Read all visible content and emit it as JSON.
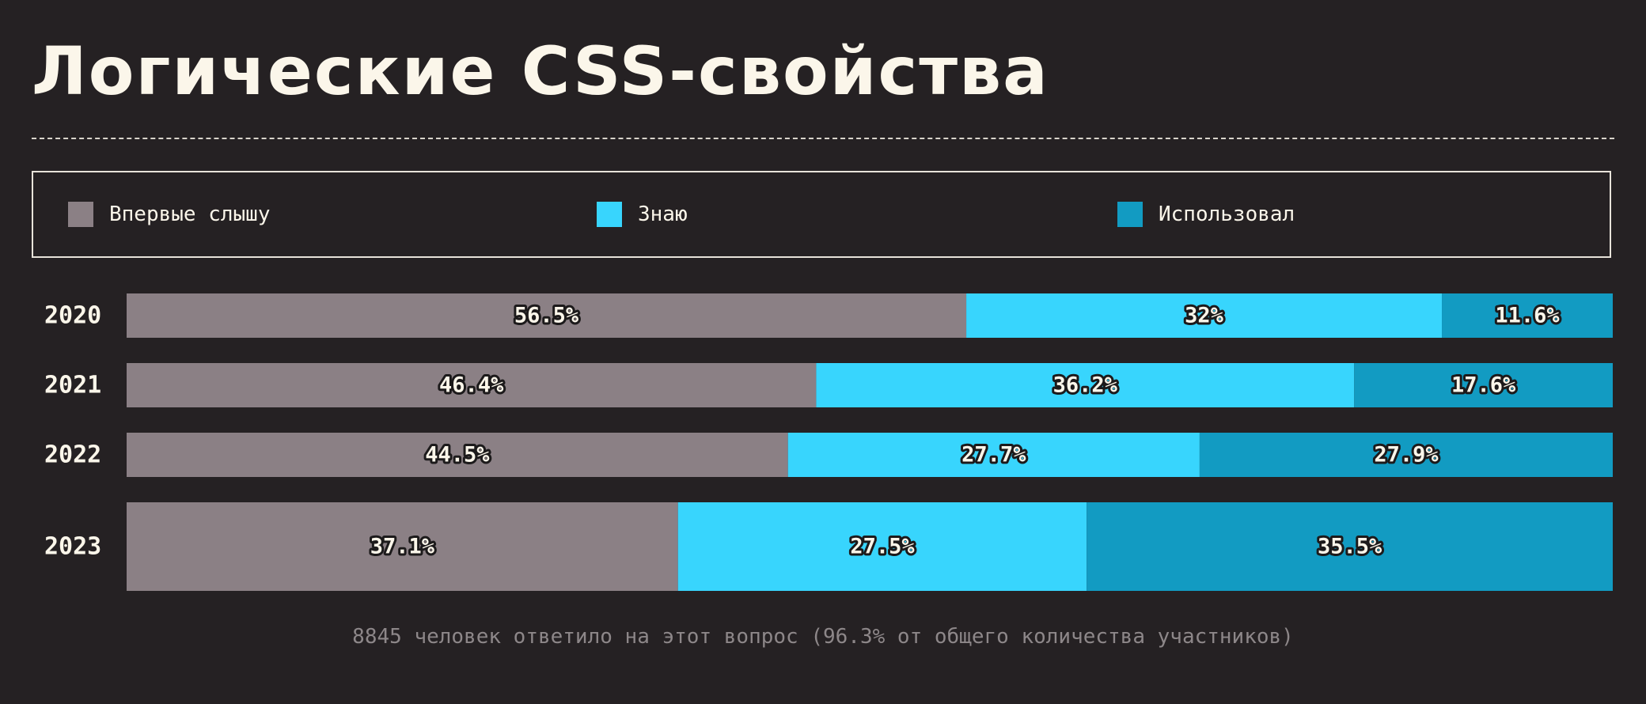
{
  "title": "Логические CSS-свойства",
  "legend": [
    {
      "label": "Впервые слышу",
      "color": "#8b8085"
    },
    {
      "label": "Знаю",
      "color": "#38d5fd"
    },
    {
      "label": "Использовал",
      "color": "#129bc2"
    }
  ],
  "chart_data": {
    "type": "bar",
    "orientation": "horizontal",
    "stacked": true,
    "categories": [
      "2020",
      "2021",
      "2022",
      "2023"
    ],
    "series": [
      {
        "name": "Впервые слышу",
        "values": [
          56.5,
          46.4,
          44.5,
          37.1
        ],
        "labels": [
          "56.5%",
          "46.4%",
          "44.5%",
          "37.1%"
        ],
        "color": "#8b8085"
      },
      {
        "name": "Знаю",
        "values": [
          32,
          36.2,
          27.7,
          27.5
        ],
        "labels": [
          "32%",
          "36.2%",
          "27.7%",
          "27.5%"
        ],
        "color": "#38d5fd"
      },
      {
        "name": "Использовал",
        "values": [
          11.6,
          17.6,
          27.9,
          35.5
        ],
        "labels": [
          "11.6%",
          "17.6%",
          "27.9%",
          "35.5%"
        ],
        "color": "#129bc2"
      }
    ],
    "xlim": [
      0,
      100
    ]
  },
  "footnote": "8845 человек ответило на этот вопрос (96.3% от общего количества участников)"
}
